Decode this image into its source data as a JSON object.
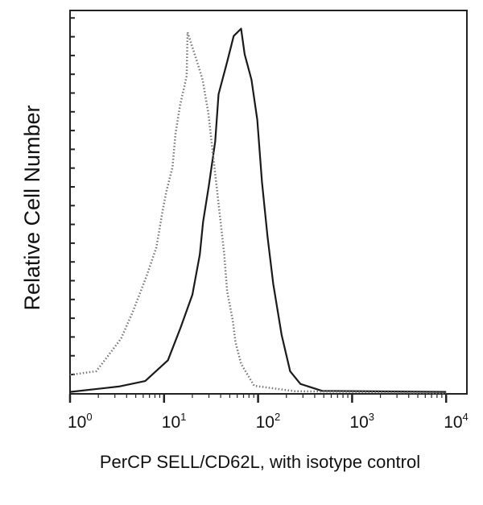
{
  "chart_data": {
    "type": "line",
    "xlabel": "PerCP SELL/CD62L, with isotype control",
    "ylabel": "Relative Cell Number",
    "xscale": "log",
    "xlim": [
      1,
      10000
    ],
    "ylim": [
      0,
      105
    ],
    "xticks": [
      {
        "base": "10",
        "exp": "0",
        "value": 1
      },
      {
        "base": "10",
        "exp": "1",
        "value": 10
      },
      {
        "base": "10",
        "exp": "2",
        "value": 100
      },
      {
        "base": "10",
        "exp": "3",
        "value": 1000
      },
      {
        "base": "10",
        "exp": "4",
        "value": 10000
      }
    ],
    "grid": false,
    "series": [
      {
        "style": "solid",
        "color": "#1a1a1a",
        "x": [
          1,
          3.3,
          6.3,
          11,
          15,
          20,
          24,
          26,
          30,
          35,
          38,
          47,
          55,
          66,
          72,
          85,
          98,
          110,
          126,
          145,
          178,
          219,
          282,
          479,
          10000
        ],
        "y": [
          0.3,
          1.8,
          3.3,
          9,
          18,
          27,
          38,
          47,
          57,
          69,
          82,
          91,
          98,
          100,
          93,
          86,
          75,
          58,
          43,
          30,
          16,
          6,
          2.5,
          0.6,
          0.3
        ]
      },
      {
        "style": "dotted",
        "color": "#777777",
        "x": [
          1,
          1.9,
          2.5,
          3.5,
          4.6,
          6.5,
          8.3,
          9.5,
          10.5,
          12.3,
          13.2,
          14.8,
          17.4,
          17.8,
          22.4,
          25.7,
          29.5,
          38,
          43.7,
          46.8,
          53.7,
          57.5,
          66,
          91,
          245,
          10000
        ],
        "y": [
          5,
          6,
          10,
          15,
          22,
          32,
          40,
          49,
          55,
          62,
          71,
          79,
          87,
          99,
          91,
          86,
          77,
          52,
          38,
          28,
          20,
          14,
          8,
          2,
          0.5,
          0
        ]
      }
    ]
  }
}
